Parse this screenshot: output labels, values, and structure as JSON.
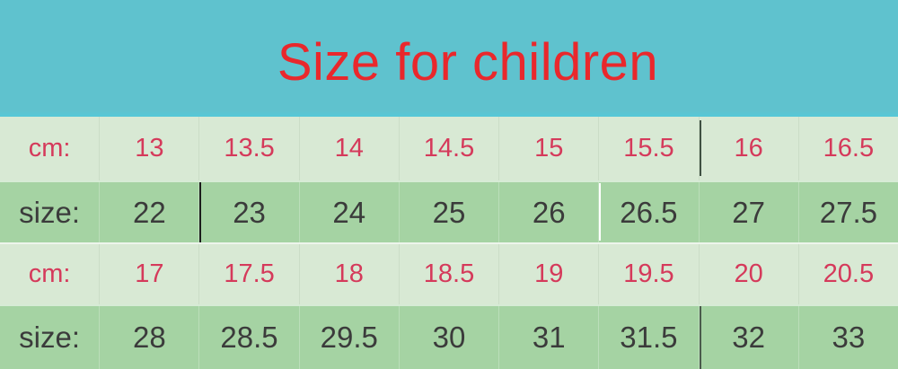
{
  "title": "Size for children",
  "colors": {
    "header_bg": "#5fc2ce",
    "header_strip": "#55c8d8",
    "title_red": "#e9282c",
    "row_light_bg": "#d8e9d4",
    "row_green_bg": "#a5d3a3",
    "cm_text": "#d53a5b",
    "size_text": "#3b3b3b"
  },
  "chart_data": {
    "type": "table",
    "title": "Size for children",
    "row_labels": [
      "cm:",
      "size:",
      "cm:",
      "size:"
    ],
    "rows": [
      {
        "label": "cm:",
        "unit": "cm",
        "values": [
          "13",
          "13.5",
          "14",
          "14.5",
          "15",
          "15.5",
          "16",
          "16.5"
        ]
      },
      {
        "label": "size:",
        "unit": "size",
        "values": [
          "22",
          "23",
          "24",
          "25",
          "26",
          "26.5",
          "27",
          "27.5"
        ]
      },
      {
        "label": "cm:",
        "unit": "cm",
        "values": [
          "17",
          "17.5",
          "18",
          "18.5",
          "19",
          "19.5",
          "20",
          "20.5"
        ]
      },
      {
        "label": "size:",
        "unit": "size",
        "values": [
          "28",
          "28.5",
          "29.5",
          "30",
          "31",
          "31.5",
          "32",
          "33"
        ]
      }
    ]
  }
}
